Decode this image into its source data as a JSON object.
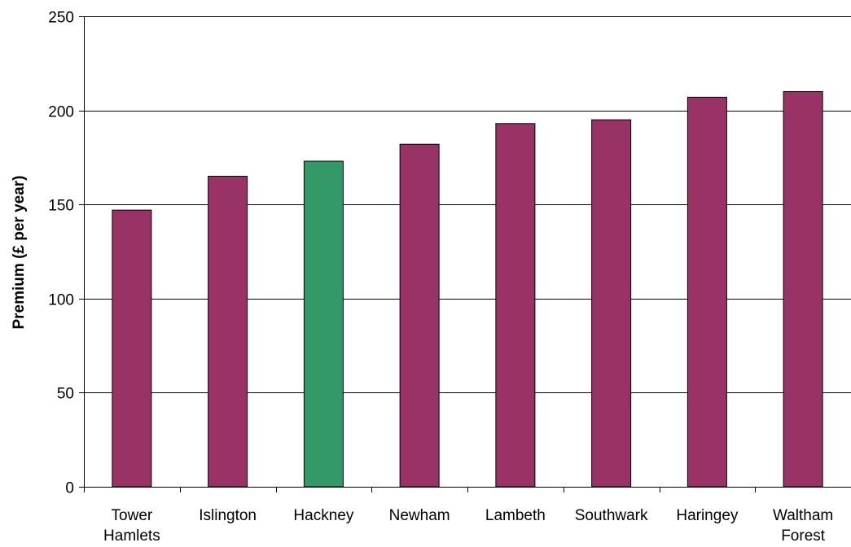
{
  "chart_data": {
    "type": "bar",
    "title": "",
    "xlabel": "",
    "ylabel": "Premium (£ per year)",
    "ylim": [
      0,
      250
    ],
    "yticks": [
      0,
      50,
      100,
      150,
      200,
      250
    ],
    "grid": true,
    "categories": [
      [
        "Tower",
        "Hamlets"
      ],
      [
        "Islington"
      ],
      [
        "Hackney"
      ],
      [
        "Newham"
      ],
      [
        "Lambeth"
      ],
      [
        "Southwark"
      ],
      [
        "Haringey"
      ],
      [
        "Waltham",
        "Forest"
      ]
    ],
    "values": [
      147,
      165,
      173,
      182,
      193,
      195,
      207,
      210
    ],
    "colors": {
      "default": "#993366",
      "highlight": "#339966",
      "highlight_index": 2,
      "gridline": "#000000",
      "outline": "#000000"
    }
  }
}
